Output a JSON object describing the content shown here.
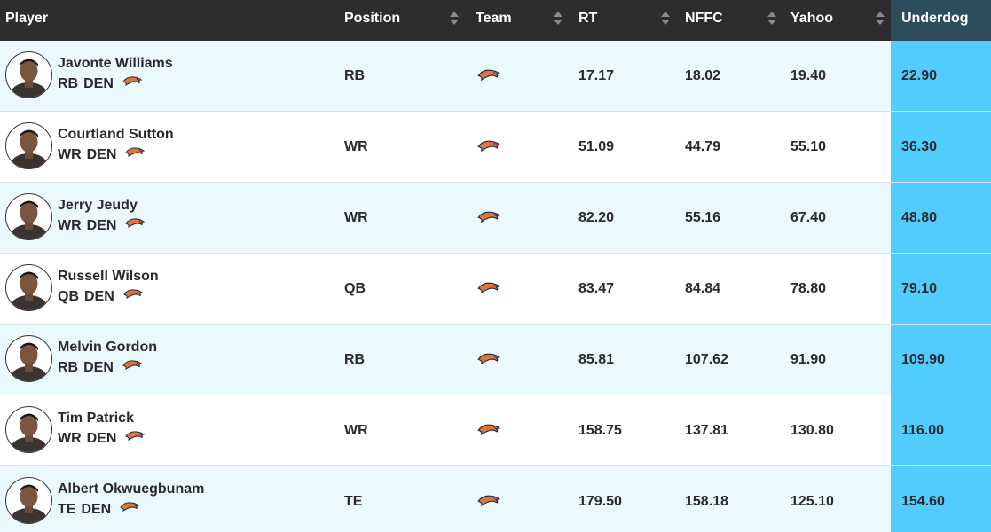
{
  "header": {
    "player": "Player",
    "position": "Position",
    "team": "Team",
    "rt": "RT",
    "nffc": "NFFC",
    "yahoo": "Yahoo",
    "underdog": "Underdog"
  },
  "icons": {
    "sort": "sort-arrows-icon",
    "team_logo": "broncos-logo-icon",
    "avatar": "player-headshot-icon"
  },
  "colors": {
    "header_bg": "#2d2d2d",
    "underdog_header_bg": "#2e4d5c",
    "underdog_col_bg": "#52ccfd",
    "row_alt_bg": "#e9f9fe",
    "logo_orange": "#e2733a",
    "logo_navy": "#1f2a44"
  },
  "rows": [
    {
      "name": "Javonte Williams",
      "pos": "RB",
      "team": "DEN",
      "position": "RB",
      "rt": "17.17",
      "nffc": "18.02",
      "yahoo": "19.40",
      "underdog": "22.90"
    },
    {
      "name": "Courtland Sutton",
      "pos": "WR",
      "team": "DEN",
      "position": "WR",
      "rt": "51.09",
      "nffc": "44.79",
      "yahoo": "55.10",
      "underdog": "36.30"
    },
    {
      "name": "Jerry Jeudy",
      "pos": "WR",
      "team": "DEN",
      "position": "WR",
      "rt": "82.20",
      "nffc": "55.16",
      "yahoo": "67.40",
      "underdog": "48.80"
    },
    {
      "name": "Russell Wilson",
      "pos": "QB",
      "team": "DEN",
      "position": "QB",
      "rt": "83.47",
      "nffc": "84.84",
      "yahoo": "78.80",
      "underdog": "79.10"
    },
    {
      "name": "Melvin Gordon",
      "pos": "RB",
      "team": "DEN",
      "position": "RB",
      "rt": "85.81",
      "nffc": "107.62",
      "yahoo": "91.90",
      "underdog": "109.90"
    },
    {
      "name": "Tim Patrick",
      "pos": "WR",
      "team": "DEN",
      "position": "WR",
      "rt": "158.75",
      "nffc": "137.81",
      "yahoo": "130.80",
      "underdog": "116.00"
    },
    {
      "name": "Albert Okwuegbunam",
      "pos": "TE",
      "team": "DEN",
      "position": "TE",
      "rt": "179.50",
      "nffc": "158.18",
      "yahoo": "125.10",
      "underdog": "154.60"
    }
  ]
}
